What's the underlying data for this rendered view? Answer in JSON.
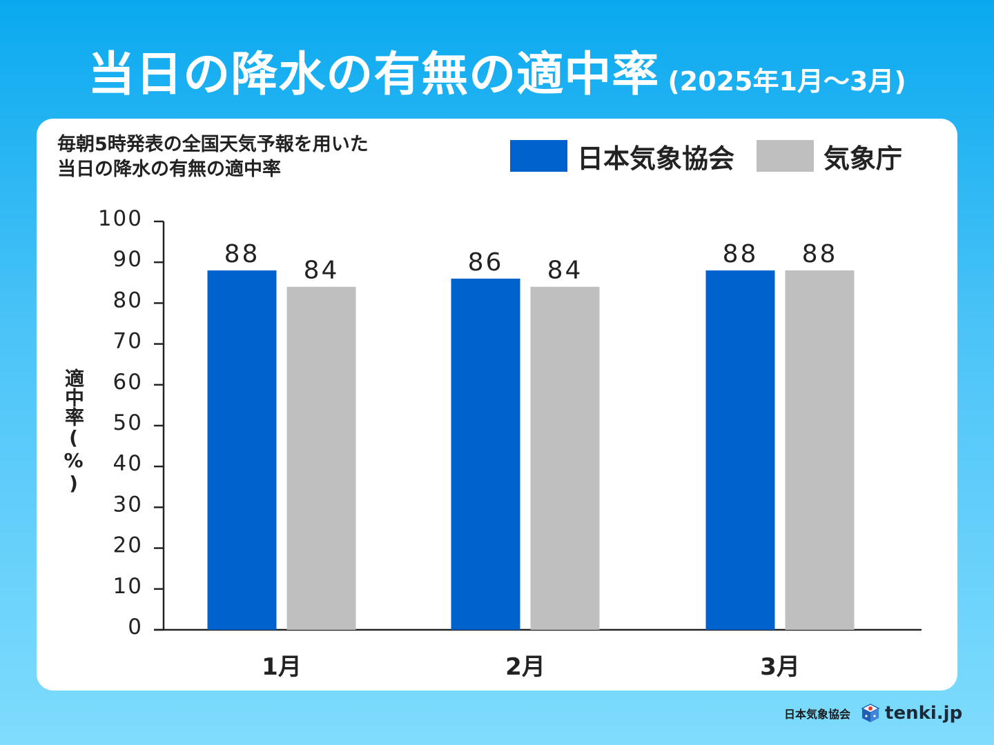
{
  "header": {
    "title": "当日の降水の有無の適中率",
    "period": "(2025年1月〜3月)"
  },
  "card": {
    "subtitle_line1": "毎朝5時発表の全国天気予報を用いた",
    "subtitle_line2": "当日の降水の有無の適中率"
  },
  "colors": {
    "jwa": "#0062cc",
    "jma": "#bfbfbf",
    "background_top": "#0aa9ef",
    "background_bottom": "#7fdcfd"
  },
  "chart_data": {
    "type": "bar",
    "categories": [
      "1月",
      "2月",
      "3月"
    ],
    "series": [
      {
        "name": "日本気象協会",
        "values": [
          88,
          86,
          88
        ]
      },
      {
        "name": "気象庁",
        "values": [
          84,
          84,
          88
        ]
      }
    ],
    "ylabel": "適中率(%)",
    "xlabel": "",
    "ylim": [
      0,
      100
    ],
    "yticks": [
      0,
      10,
      20,
      30,
      40,
      50,
      60,
      70,
      80,
      90,
      100
    ],
    "data_labels": true,
    "grid": false,
    "legend_position": "top-right"
  },
  "footer": {
    "org": "日本気象協会",
    "brand": "tenki.jp",
    "logo_icon": "tenki-cube-logo-icon"
  }
}
